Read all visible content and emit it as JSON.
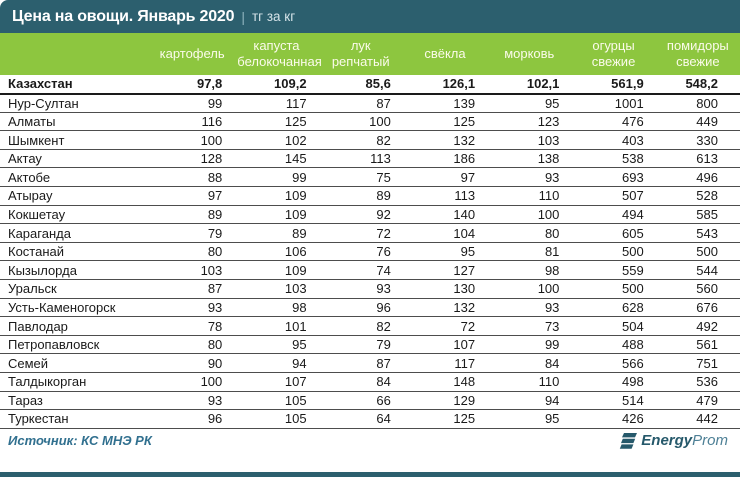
{
  "title": {
    "main": "Цена на овощи. Январь 2020",
    "separator": "|",
    "unit": "тг за кг"
  },
  "table": {
    "columns": [
      "картофель",
      "капуста белокочанная",
      "лук репчатый",
      "свёкла",
      "морковь",
      "огурцы свежие",
      "помидоры свежие"
    ],
    "rows": [
      {
        "name": "Казахстан",
        "bold": true,
        "values": [
          "97,8",
          "109,2",
          "85,6",
          "126,1",
          "102,1",
          "561,9",
          "548,2"
        ]
      },
      {
        "name": "Нур-Султан",
        "bold": false,
        "values": [
          "99",
          "117",
          "87",
          "139",
          "95",
          "1001",
          "800"
        ]
      },
      {
        "name": "Алматы",
        "bold": false,
        "values": [
          "116",
          "125",
          "100",
          "125",
          "123",
          "476",
          "449"
        ]
      },
      {
        "name": "Шымкент",
        "bold": false,
        "values": [
          "100",
          "102",
          "82",
          "132",
          "103",
          "403",
          "330"
        ]
      },
      {
        "name": "Актау",
        "bold": false,
        "values": [
          "128",
          "145",
          "113",
          "186",
          "138",
          "538",
          "613"
        ]
      },
      {
        "name": "Актобе",
        "bold": false,
        "values": [
          "88",
          "99",
          "75",
          "97",
          "93",
          "693",
          "496"
        ]
      },
      {
        "name": "Атырау",
        "bold": false,
        "values": [
          "97",
          "109",
          "89",
          "113",
          "110",
          "507",
          "528"
        ]
      },
      {
        "name": "Кокшетау",
        "bold": false,
        "values": [
          "89",
          "109",
          "92",
          "140",
          "100",
          "494",
          "585"
        ]
      },
      {
        "name": "Караганда",
        "bold": false,
        "values": [
          "79",
          "89",
          "72",
          "104",
          "80",
          "605",
          "543"
        ]
      },
      {
        "name": "Костанай",
        "bold": false,
        "values": [
          "80",
          "106",
          "76",
          "95",
          "81",
          "500",
          "500"
        ]
      },
      {
        "name": "Кызылорда",
        "bold": false,
        "values": [
          "103",
          "109",
          "74",
          "127",
          "98",
          "559",
          "544"
        ]
      },
      {
        "name": "Уральск",
        "bold": false,
        "values": [
          "87",
          "103",
          "93",
          "130",
          "100",
          "500",
          "560"
        ]
      },
      {
        "name": "Усть-Каменогорск",
        "bold": false,
        "values": [
          "93",
          "98",
          "96",
          "132",
          "93",
          "628",
          "676"
        ]
      },
      {
        "name": "Павлодар",
        "bold": false,
        "values": [
          "78",
          "101",
          "82",
          "72",
          "73",
          "504",
          "492"
        ]
      },
      {
        "name": "Петропавловск",
        "bold": false,
        "values": [
          "80",
          "95",
          "79",
          "107",
          "99",
          "488",
          "561"
        ]
      },
      {
        "name": "Семей",
        "bold": false,
        "values": [
          "90",
          "94",
          "87",
          "117",
          "84",
          "566",
          "751"
        ]
      },
      {
        "name": "Талдыкорган",
        "bold": false,
        "values": [
          "100",
          "107",
          "84",
          "148",
          "110",
          "498",
          "536"
        ]
      },
      {
        "name": "Тараз",
        "bold": false,
        "values": [
          "93",
          "105",
          "66",
          "129",
          "94",
          "514",
          "479"
        ]
      },
      {
        "name": "Туркестан",
        "bold": false,
        "values": [
          "96",
          "105",
          "64",
          "125",
          "95",
          "426",
          "442"
        ]
      }
    ]
  },
  "footer": {
    "source": "Источник: КС МНЭ РК",
    "logo": {
      "bold_part": "Energy",
      "light_part": "Prom"
    }
  },
  "colors": {
    "title_bar_teal": "#2C5F6E",
    "header_band_green": "#8DC63F",
    "header_text": "#FBFBEA",
    "body_text": "#1A1A1A",
    "source_text": "#31708F",
    "logo_dark_teal": "#26596B",
    "logo_light_teal": "#4E8096"
  },
  "chart_data": {
    "type": "table",
    "title": "Цена на овощи. Январь 2020",
    "unit": "тг за кг",
    "columns": [
      "картофель",
      "капуста белокочанная",
      "лук репчатый",
      "свёкла",
      "морковь",
      "огурцы свежие",
      "помидоры свежие"
    ],
    "rows": [
      {
        "region": "Казахстан",
        "values": [
          97.8,
          109.2,
          85.6,
          126.1,
          102.1,
          561.9,
          548.2
        ]
      },
      {
        "region": "Нур-Султан",
        "values": [
          99,
          117,
          87,
          139,
          95,
          1001,
          800
        ]
      },
      {
        "region": "Алматы",
        "values": [
          116,
          125,
          100,
          125,
          123,
          476,
          449
        ]
      },
      {
        "region": "Шымкент",
        "values": [
          100,
          102,
          82,
          132,
          103,
          403,
          330
        ]
      },
      {
        "region": "Актау",
        "values": [
          128,
          145,
          113,
          186,
          138,
          538,
          613
        ]
      },
      {
        "region": "Актобе",
        "values": [
          88,
          99,
          75,
          97,
          93,
          693,
          496
        ]
      },
      {
        "region": "Атырау",
        "values": [
          97,
          109,
          89,
          113,
          110,
          507,
          528
        ]
      },
      {
        "region": "Кокшетау",
        "values": [
          89,
          109,
          92,
          140,
          100,
          494,
          585
        ]
      },
      {
        "region": "Караганда",
        "values": [
          79,
          89,
          72,
          104,
          80,
          605,
          543
        ]
      },
      {
        "region": "Костанай",
        "values": [
          80,
          106,
          76,
          95,
          81,
          500,
          500
        ]
      },
      {
        "region": "Кызылорда",
        "values": [
          103,
          109,
          74,
          127,
          98,
          559,
          544
        ]
      },
      {
        "region": "Уральск",
        "values": [
          87,
          103,
          93,
          130,
          100,
          500,
          560
        ]
      },
      {
        "region": "Усть-Каменогорск",
        "values": [
          93,
          98,
          96,
          132,
          93,
          628,
          676
        ]
      },
      {
        "region": "Павлодар",
        "values": [
          78,
          101,
          82,
          72,
          73,
          504,
          492
        ]
      },
      {
        "region": "Петропавловск",
        "values": [
          80,
          95,
          79,
          107,
          99,
          488,
          561
        ]
      },
      {
        "region": "Семей",
        "values": [
          90,
          94,
          87,
          117,
          84,
          566,
          751
        ]
      },
      {
        "region": "Талдыкорган",
        "values": [
          100,
          107,
          84,
          148,
          110,
          498,
          536
        ]
      },
      {
        "region": "Тараз",
        "values": [
          93,
          105,
          66,
          129,
          94,
          514,
          479
        ]
      },
      {
        "region": "Туркестан",
        "values": [
          96,
          105,
          64,
          125,
          95,
          426,
          442
        ]
      }
    ]
  }
}
